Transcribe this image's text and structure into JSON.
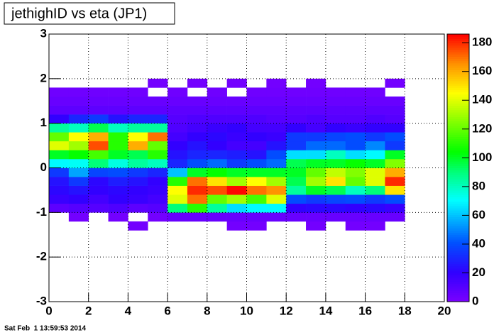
{
  "chart_data": {
    "type": "heatmap",
    "title": "jethighID vs eta (JP1)",
    "footer": "Sat Feb  1 13:59:53 2014",
    "xlim": [
      0,
      20
    ],
    "xticks": [
      0,
      2,
      4,
      6,
      8,
      10,
      12,
      14,
      16,
      18,
      20
    ],
    "ylim": [
      -3,
      3
    ],
    "yticks": [
      -3,
      -2,
      -1,
      0,
      1,
      2,
      3
    ],
    "zlim": [
      0,
      186
    ],
    "zticks": [
      0,
      20,
      40,
      60,
      80,
      100,
      120,
      140,
      160,
      180
    ],
    "grid": true,
    "xbins": [
      0,
      1,
      2,
      3,
      4,
      5,
      6,
      7,
      8,
      9,
      10,
      11,
      12,
      13,
      14,
      15,
      16,
      17,
      18
    ],
    "ybins": [
      -1.4,
      -1.2,
      -1.0,
      -0.8,
      -0.6,
      -0.4,
      -0.2,
      0,
      0.2,
      0.4,
      0.6,
      0.8,
      1.0,
      1.2,
      1.4,
      1.6,
      1.8,
      2.0
    ],
    "z": [
      [
        null,
        null,
        null,
        null,
        2,
        null,
        null,
        null,
        null,
        2,
        2,
        null,
        null,
        2,
        null,
        2,
        2,
        null
      ],
      [
        null,
        2,
        null,
        2,
        null,
        2,
        5,
        5,
        5,
        5,
        5,
        5,
        5,
        5,
        5,
        5,
        5,
        5
      ],
      [
        8,
        10,
        10,
        12,
        8,
        10,
        90,
        110,
        85,
        65,
        70,
        70,
        20,
        22,
        22,
        20,
        22,
        18
      ],
      [
        18,
        20,
        15,
        20,
        18,
        15,
        140,
        170,
        120,
        130,
        115,
        140,
        40,
        35,
        38,
        40,
        35,
        40
      ],
      [
        22,
        25,
        20,
        22,
        20,
        18,
        145,
        180,
        175,
        185,
        170,
        165,
        85,
        100,
        95,
        80,
        90,
        150
      ],
      [
        25,
        35,
        22,
        28,
        25,
        20,
        110,
        170,
        150,
        130,
        145,
        130,
        95,
        130,
        150,
        120,
        140,
        180
      ],
      [
        35,
        55,
        38,
        40,
        35,
        30,
        60,
        100,
        105,
        100,
        100,
        100,
        100,
        120,
        135,
        125,
        140,
        160
      ],
      [
        70,
        72,
        90,
        75,
        85,
        80,
        30,
        40,
        45,
        35,
        40,
        45,
        95,
        100,
        100,
        105,
        100,
        125
      ],
      [
        100,
        105,
        115,
        100,
        95,
        110,
        25,
        30,
        30,
        28,
        25,
        40,
        65,
        65,
        80,
        65,
        70,
        100
      ],
      [
        140,
        130,
        175,
        110,
        160,
        120,
        20,
        25,
        20,
        15,
        15,
        25,
        35,
        45,
        45,
        40,
        50,
        35
      ],
      [
        120,
        145,
        160,
        110,
        145,
        170,
        15,
        20,
        22,
        18,
        20,
        18,
        35,
        35,
        38,
        40,
        35,
        40
      ],
      [
        85,
        80,
        95,
        80,
        85,
        85,
        12,
        15,
        18,
        20,
        15,
        15,
        20,
        15,
        20,
        18,
        20,
        20
      ],
      [
        20,
        30,
        35,
        25,
        30,
        30,
        10,
        12,
        12,
        12,
        12,
        10,
        10,
        12,
        10,
        10,
        12,
        10
      ],
      [
        8,
        8,
        8,
        8,
        8,
        8,
        8,
        8,
        8,
        8,
        8,
        8,
        8,
        8,
        8,
        8,
        8,
        8
      ],
      [
        5,
        5,
        5,
        5,
        5,
        5,
        5,
        5,
        5,
        5,
        5,
        5,
        5,
        5,
        5,
        5,
        5,
        5
      ],
      [
        3,
        3,
        3,
        3,
        3,
        null,
        3,
        null,
        3,
        null,
        3,
        3,
        3,
        3,
        3,
        3,
        3,
        null
      ],
      [
        null,
        null,
        null,
        null,
        null,
        2,
        null,
        2,
        null,
        2,
        null,
        2,
        null,
        2,
        null,
        null,
        null,
        2
      ]
    ]
  }
}
